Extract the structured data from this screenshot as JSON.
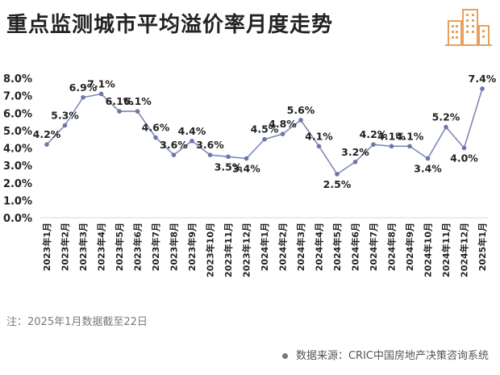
{
  "header": {
    "title": "重点监测城市平均溢价率月度走势"
  },
  "colors": {
    "line": "#7f88b8",
    "marker": "#6d76a8",
    "logo": "#e8a060",
    "grid": "#d9d9d9",
    "text": "#222222"
  },
  "chart_data": {
    "type": "line",
    "categories": [
      "2023年1月",
      "2023年2月",
      "2023年3月",
      "2023年4月",
      "2023年5月",
      "2023年6月",
      "2023年7月",
      "2023年8月",
      "2023年9月",
      "2023年10月",
      "2023年11月",
      "2023年12月",
      "2024年1月",
      "2024年2月",
      "2024年3月",
      "2024年4月",
      "2024年5月",
      "2024年6月",
      "2024年7月",
      "2024年8月",
      "2024年9月",
      "2024年10月",
      "2024年11月",
      "2024年12月",
      "2025年1月"
    ],
    "values": [
      4.2,
      5.3,
      6.9,
      7.1,
      6.1,
      6.1,
      4.6,
      3.6,
      4.4,
      3.6,
      3.5,
      3.4,
      4.5,
      4.8,
      5.6,
      4.1,
      2.5,
      3.2,
      4.2,
      4.1,
      4.1,
      3.4,
      5.2,
      4.0,
      7.4
    ],
    "data_labels": [
      "4.2%",
      "5.3%",
      "6.9%",
      "7.1%",
      "6.1%",
      "6.1%",
      "4.6%",
      "3.6%",
      "4.4%",
      "3.6%",
      "3.5%",
      "3.4%",
      "4.5%",
      "4.8%",
      "5.6%",
      "4.1%",
      "2.5%",
      "3.2%",
      "4.2%",
      "4.1%",
      "4.1%",
      "3.4%",
      "5.2%",
      "4.0%",
      "7.4%"
    ],
    "yticks": [
      "0.0%",
      "1.0%",
      "2.0%",
      "3.0%",
      "4.0%",
      "5.0%",
      "6.0%",
      "7.0%",
      "8.0%"
    ],
    "ylim": [
      0,
      8
    ],
    "title": "重点监测城市平均溢价率月度走势",
    "xlabel": "",
    "ylabel": "",
    "grid": false,
    "legend": "none"
  },
  "footer": {
    "note": "注：2025年1月数据截至22日",
    "source": "数据来源：CRIC中国房地产决策咨询系统"
  },
  "icons": {
    "logo": "buildings-icon",
    "source_bullet": "dot-icon"
  }
}
